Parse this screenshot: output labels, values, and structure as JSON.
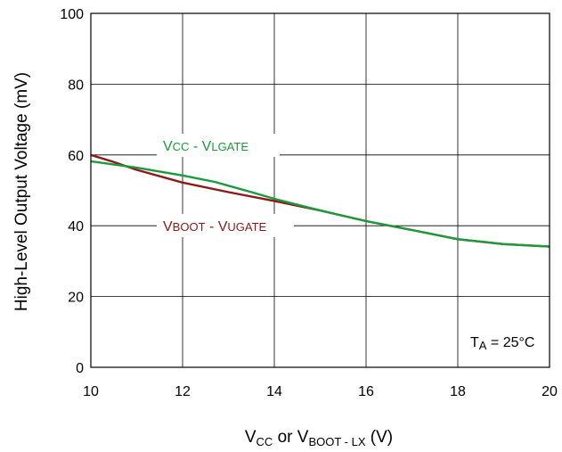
{
  "chart_data": {
    "type": "line",
    "ylabel": "High-Level Output Voltage (mV)",
    "xlabel": {
      "v1": "V",
      "s1": "CC",
      "mid": " or ",
      "v2": "V",
      "s2": "BOOT - LX",
      "unit": " (V)"
    },
    "xlim": [
      10,
      20
    ],
    "ylim": [
      0,
      100
    ],
    "xticks": [
      10,
      12,
      14,
      16,
      18,
      20
    ],
    "yticks": [
      0,
      20,
      40,
      60,
      80,
      100
    ],
    "grid": true,
    "colors": {
      "vcc": "#1a9a3a",
      "vboot": "#8b1a1a"
    },
    "series": [
      {
        "name_parts": {
          "a": "V",
          "as": "CC",
          "sep": " - ",
          "b": "V",
          "bs": "LGATE"
        },
        "x": [
          10,
          11,
          12,
          12.7,
          13.5,
          14,
          15,
          16,
          17,
          18,
          19,
          20
        ],
        "y": [
          58.2,
          56.4,
          54.2,
          52.4,
          49.5,
          47.6,
          44.3,
          41.3,
          38.8,
          36.2,
          34.8,
          34.1
        ]
      },
      {
        "name_parts": {
          "a": "V",
          "as": "BOOT",
          "sep": " - ",
          "b": "V",
          "bs": "UGATE"
        },
        "x": [
          10,
          10.5,
          11,
          12,
          13,
          14,
          15,
          16,
          17,
          18,
          19,
          20
        ],
        "y": [
          60.0,
          58.0,
          55.8,
          52.2,
          49.5,
          47.0,
          44.3,
          41.3,
          38.8,
          36.2,
          34.8,
          34.1
        ]
      }
    ],
    "annotation": {
      "t": "T",
      "ts": "A",
      "rest": " = 25°C"
    }
  }
}
